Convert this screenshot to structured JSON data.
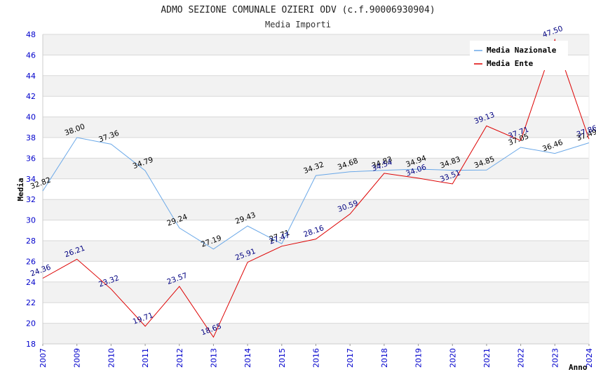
{
  "chart_data": {
    "type": "line",
    "title": "ADMO SEZIONE COMUNALE OZIERI ODV (c.f.90006930904)",
    "subtitle": "Media Importi",
    "xlabel": "Anno",
    "ylabel": "Media",
    "ylim": [
      18,
      48
    ],
    "yticks": [
      18,
      20,
      22,
      24,
      26,
      28,
      30,
      32,
      34,
      36,
      38,
      40,
      42,
      44,
      46,
      48
    ],
    "categories": [
      "2007",
      "2009",
      "2010",
      "2011",
      "2012",
      "2013",
      "2014",
      "2015",
      "2016",
      "2017",
      "2018",
      "2019",
      "2020",
      "2021",
      "2022",
      "2023",
      "2024"
    ],
    "grid": "horizontal-banded",
    "legend_position": "top-right",
    "series": [
      {
        "name": "Media Nazionale",
        "color": "#6aa8e8",
        "label_color": "#000000",
        "values": [
          32.82,
          38.0,
          37.36,
          34.79,
          29.24,
          27.19,
          29.43,
          27.71,
          34.32,
          34.68,
          34.83,
          34.94,
          34.83,
          34.85,
          37.05,
          36.46,
          37.49
        ]
      },
      {
        "name": "Media Ente",
        "color": "#dd0000",
        "label_color": "#000080",
        "values": [
          24.36,
          26.21,
          23.32,
          19.71,
          23.57,
          18.65,
          25.91,
          27.47,
          28.16,
          30.59,
          34.54,
          34.06,
          33.51,
          39.13,
          37.71,
          47.5,
          37.86
        ]
      }
    ]
  }
}
